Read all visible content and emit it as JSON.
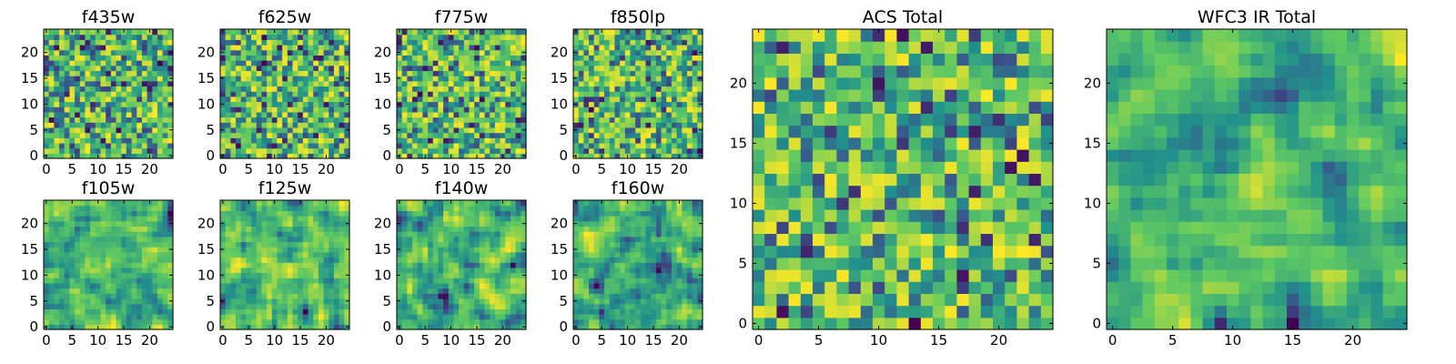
{
  "figure": {
    "background": "#ffffff"
  },
  "colormap": {
    "name": "viridis",
    "stops": [
      "#440154",
      "#3b528b",
      "#21918c",
      "#5ec962",
      "#fde725"
    ]
  },
  "chart_data": [
    {
      "type": "heatmap",
      "title": "f435w",
      "grid_size": 25,
      "xlim": [
        0,
        24
      ],
      "ylim": [
        0,
        24
      ],
      "xticks": [
        0,
        5,
        10,
        15,
        20
      ],
      "yticks": [
        0,
        5,
        10,
        15,
        20
      ],
      "value_range": [
        0,
        1
      ],
      "seed": 11,
      "smooth": 0,
      "gamma": 0.55,
      "values_note": "per-pixel noise field rendered with viridis colormap"
    },
    {
      "type": "heatmap",
      "title": "f625w",
      "grid_size": 25,
      "xlim": [
        0,
        24
      ],
      "ylim": [
        0,
        24
      ],
      "xticks": [
        0,
        5,
        10,
        15,
        20
      ],
      "yticks": [
        0,
        5,
        10,
        15,
        20
      ],
      "value_range": [
        0,
        1
      ],
      "seed": 23,
      "smooth": 0,
      "gamma": 0.55,
      "values_note": "per-pixel noise field rendered with viridis colormap"
    },
    {
      "type": "heatmap",
      "title": "f775w",
      "grid_size": 25,
      "xlim": [
        0,
        24
      ],
      "ylim": [
        0,
        24
      ],
      "xticks": [
        0,
        5,
        10,
        15,
        20
      ],
      "yticks": [
        0,
        5,
        10,
        15,
        20
      ],
      "value_range": [
        0,
        1
      ],
      "seed": 37,
      "smooth": 0,
      "gamma": 0.55,
      "values_note": "per-pixel noise field rendered with viridis colormap"
    },
    {
      "type": "heatmap",
      "title": "f850lp",
      "grid_size": 25,
      "xlim": [
        0,
        24
      ],
      "ylim": [
        0,
        24
      ],
      "xticks": [
        0,
        5,
        10,
        15,
        20
      ],
      "yticks": [
        0,
        5,
        10,
        15,
        20
      ],
      "value_range": [
        0,
        1
      ],
      "seed": 41,
      "smooth": 0,
      "gamma": 0.55,
      "values_note": "per-pixel noise field rendered with viridis colormap"
    },
    {
      "type": "heatmap",
      "title": "f105w",
      "grid_size": 25,
      "xlim": [
        0,
        24
      ],
      "ylim": [
        0,
        24
      ],
      "xticks": [
        0,
        5,
        10,
        15,
        20
      ],
      "yticks": [
        0,
        5,
        10,
        15,
        20
      ],
      "value_range": [
        0,
        1
      ],
      "seed": 53,
      "smooth": 1,
      "gamma": 0.6,
      "values_note": "per-pixel noise field rendered with viridis colormap"
    },
    {
      "type": "heatmap",
      "title": "f125w",
      "grid_size": 25,
      "xlim": [
        0,
        24
      ],
      "ylim": [
        0,
        24
      ],
      "xticks": [
        0,
        5,
        10,
        15,
        20
      ],
      "yticks": [
        0,
        5,
        10,
        15,
        20
      ],
      "value_range": [
        0,
        1
      ],
      "seed": 67,
      "smooth": 1,
      "gamma": 0.6,
      "values_note": "per-pixel noise field rendered with viridis colormap"
    },
    {
      "type": "heatmap",
      "title": "f140w",
      "grid_size": 25,
      "xlim": [
        0,
        24
      ],
      "ylim": [
        0,
        24
      ],
      "xticks": [
        0,
        5,
        10,
        15,
        20
      ],
      "yticks": [
        0,
        5,
        10,
        15,
        20
      ],
      "value_range": [
        0,
        1
      ],
      "seed": 79,
      "smooth": 1,
      "gamma": 0.6,
      "values_note": "per-pixel noise field rendered with viridis colormap"
    },
    {
      "type": "heatmap",
      "title": "f160w",
      "grid_size": 25,
      "xlim": [
        0,
        24
      ],
      "ylim": [
        0,
        24
      ],
      "xticks": [
        0,
        5,
        10,
        15,
        20
      ],
      "yticks": [
        0,
        5,
        10,
        15,
        20
      ],
      "value_range": [
        0,
        1
      ],
      "seed": 83,
      "smooth": 1,
      "gamma": 0.6,
      "values_note": "per-pixel noise field rendered with viridis colormap"
    },
    {
      "type": "heatmap",
      "title": "ACS Total",
      "grid_size": 25,
      "xlim": [
        0,
        24
      ],
      "ylim": [
        0,
        24
      ],
      "xticks": [
        0,
        5,
        10,
        15,
        20
      ],
      "yticks": [
        0,
        5,
        10,
        15,
        20
      ],
      "value_range": [
        0,
        1
      ],
      "seed": 97,
      "smooth": 0,
      "gamma": 0.5,
      "values_note": "per-pixel noise field rendered with viridis colormap"
    },
    {
      "type": "heatmap",
      "title": "WFC3 IR Total",
      "grid_size": 25,
      "xlim": [
        0,
        24
      ],
      "ylim": [
        0,
        24
      ],
      "xticks": [
        0,
        5,
        10,
        15,
        20
      ],
      "yticks": [
        0,
        5,
        10,
        15,
        20
      ],
      "value_range": [
        0,
        1
      ],
      "seed": 101,
      "smooth": 1,
      "gamma": 0.55,
      "values_note": "per-pixel noise field rendered with viridis colormap"
    }
  ]
}
